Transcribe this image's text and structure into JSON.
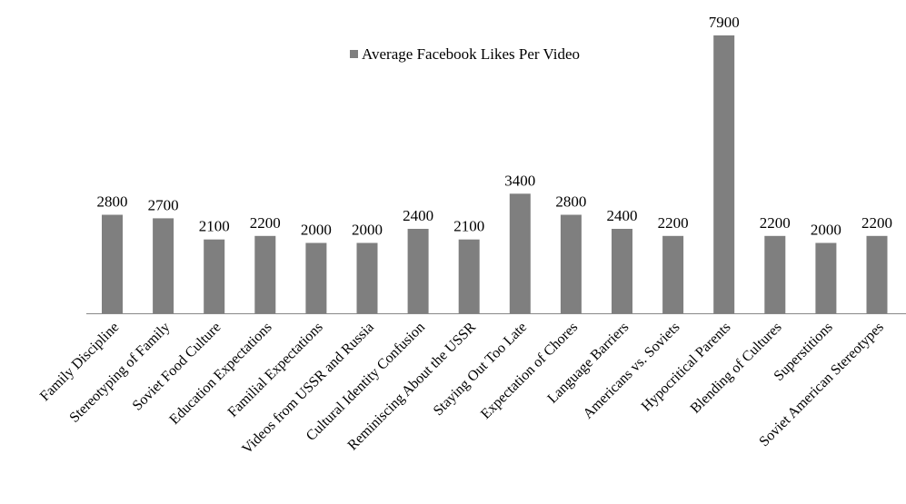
{
  "chart_data": {
    "type": "bar",
    "title": "",
    "xlabel": "",
    "ylabel": "",
    "ylim": [
      0,
      7900
    ],
    "grid": false,
    "legend_position": "top-center",
    "categories": [
      "Family Discipline",
      "Stereotyping of Family",
      "Soviet Food Culture",
      "Education Expectations",
      "Familial Expectations",
      "Videos from USSR and Russia",
      "Cultural Identity Confusion",
      "Reminiscing About the USSR",
      "Staying Out Too Late",
      "Expectation of Chores",
      "Language Barriers",
      "Americans vs. Soviets",
      "Hypocritical Parents",
      "Blending of Cultures",
      "Superstitions",
      "Soviet American Stereotypes"
    ],
    "series": [
      {
        "name": "Average Facebook Likes Per Video",
        "values": [
          2800,
          2700,
          2100,
          2200,
          2000,
          2000,
          2400,
          2100,
          3400,
          2800,
          2400,
          2200,
          7900,
          2200,
          2000,
          2200
        ],
        "labels": [
          "2800",
          "2700",
          "2100",
          "2200",
          "2000",
          "2000",
          "2400",
          "2100",
          "3400",
          "2800",
          "2400",
          "2200",
          "7900",
          "2200",
          "2000",
          "2200"
        ]
      }
    ],
    "colors": {
      "bar": "#7f7f7f",
      "axis": "#888888"
    }
  }
}
